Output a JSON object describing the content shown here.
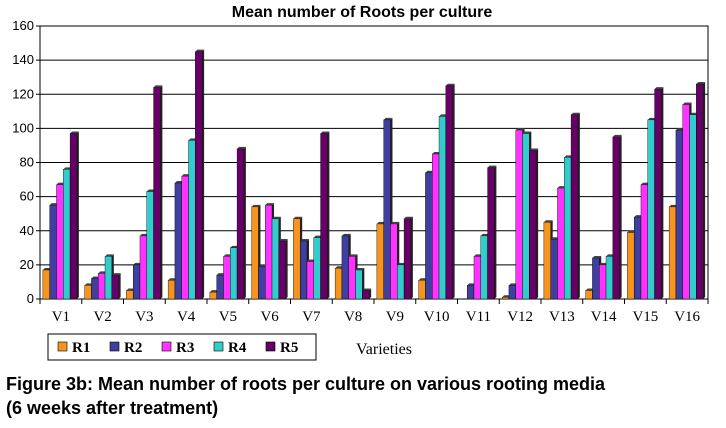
{
  "chart_data": {
    "type": "bar",
    "title": "Mean number of Roots per culture",
    "xlabel": "Varieties",
    "ylabel": "",
    "ylim": [
      0,
      160
    ],
    "yticks": [
      0,
      20,
      40,
      60,
      80,
      100,
      120,
      140,
      160
    ],
    "grid": true,
    "legend_position": "bottom-left",
    "categories": [
      "V1",
      "V2",
      "V3",
      "V4",
      "V5",
      "V6",
      "V7",
      "V8",
      "V9",
      "V10",
      "V11",
      "V12",
      "V13",
      "V14",
      "V15",
      "V16"
    ],
    "series": [
      {
        "name": "R1",
        "color": "#F7941D",
        "values": [
          17,
          8,
          5,
          11,
          4,
          54,
          47,
          18,
          44,
          11,
          0,
          1,
          45,
          5,
          39,
          54
        ]
      },
      {
        "name": "R2",
        "color": "#3F3F9F",
        "values": [
          55,
          12,
          20,
          68,
          14,
          19,
          34,
          37,
          105,
          74,
          8,
          8,
          35,
          24,
          48,
          99
        ]
      },
      {
        "name": "R3",
        "color": "#FF33FF",
        "values": [
          67,
          15,
          37,
          72,
          25,
          55,
          22,
          25,
          44,
          85,
          25,
          99,
          65,
          20,
          67,
          114
        ]
      },
      {
        "name": "R4",
        "color": "#33CCCC",
        "values": [
          76,
          25,
          63,
          93,
          30,
          47,
          36,
          17,
          20,
          107,
          37,
          97,
          83,
          25,
          105,
          108
        ]
      },
      {
        "name": "R5",
        "color": "#660066",
        "values": [
          97,
          14,
          124,
          145,
          88,
          34,
          97,
          5,
          47,
          125,
          77,
          87,
          108,
          95,
          123,
          126
        ]
      }
    ]
  },
  "caption": {
    "line1": "Figure 3b: Mean number of roots per culture on various rooting media",
    "line2": "(6 weeks after treatment)"
  }
}
